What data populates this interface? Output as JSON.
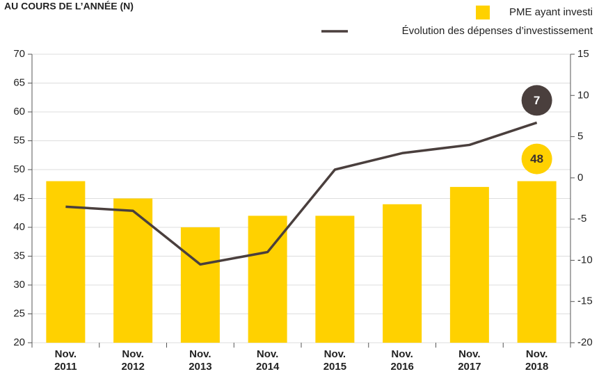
{
  "chart_data": {
    "type": "bar_line",
    "title": "AU COURS DE L’ANNÉE (N)",
    "categories": [
      "Nov. 2011",
      "Nov. 2012",
      "Nov. 2013",
      "Nov. 2014",
      "Nov. 2015",
      "Nov. 2016",
      "Nov. 2017",
      "Nov. 2018"
    ],
    "series": [
      {
        "name": "PME ayant investi",
        "type": "bar",
        "color": "#ffd100",
        "values": [
          48,
          45,
          40,
          42,
          42,
          44,
          47,
          48
        ],
        "value_labels": [
          null,
          null,
          null,
          null,
          null,
          null,
          null,
          "48"
        ]
      },
      {
        "name": "Évolution des dépenses d’investissement",
        "type": "line",
        "axis": "y2",
        "color": "#4a3f3d",
        "values": [
          -3.5,
          -4,
          -10.5,
          -9,
          1,
          3,
          4,
          6.7
        ],
        "value_labels": [
          null,
          null,
          null,
          null,
          null,
          null,
          null,
          "7"
        ]
      }
    ],
    "ylim": [
      20,
      70
    ],
    "yticks": [
      20,
      25,
      30,
      35,
      40,
      45,
      50,
      55,
      60,
      65,
      70
    ],
    "y2lim": [
      -20,
      15
    ],
    "y2ticks": [
      -20,
      -15,
      -10,
      -5,
      0,
      5,
      10,
      15
    ],
    "grid": true,
    "legend": "top-right"
  }
}
